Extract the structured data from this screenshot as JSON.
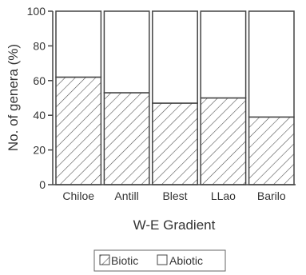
{
  "chart_data": {
    "type": "bar",
    "stacked": true,
    "xlabel": "W-E Gradient",
    "ylabel": "No. of genera (%)",
    "categories": [
      "Chiloe",
      "Antill",
      "Blest",
      "LLao",
      "Barilo"
    ],
    "ylim": [
      0,
      100
    ],
    "yticks": [
      0,
      20,
      40,
      60,
      80,
      100
    ],
    "grid": false,
    "legend_position": "bottom-center",
    "series": [
      {
        "name": "Biotic",
        "values": [
          62,
          53,
          47,
          50,
          39
        ],
        "fill": "hatch"
      },
      {
        "name": "Abiotic",
        "values": [
          38,
          47,
          53,
          50,
          61
        ],
        "fill": "white"
      }
    ],
    "colors": {
      "stroke": "#444444",
      "hatch": "#555555",
      "background": "#ffffff"
    }
  }
}
